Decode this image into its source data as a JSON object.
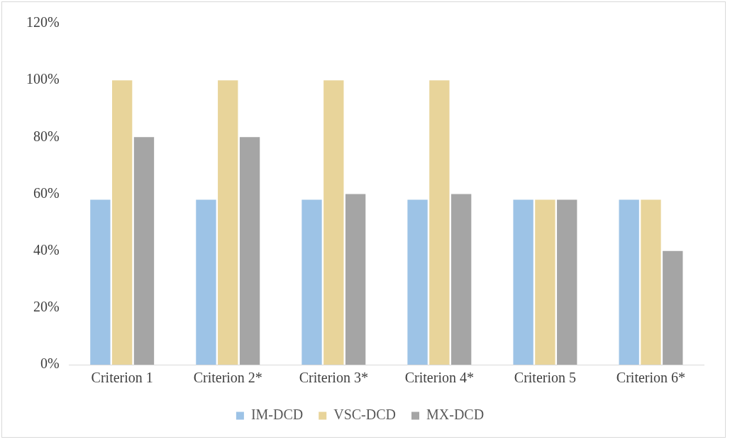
{
  "chart_data": {
    "type": "bar",
    "categories": [
      "Criterion 1",
      "Criterion 2*",
      "Criterion 3*",
      "Criterion 4*",
      "Criterion 5",
      "Criterion 6*"
    ],
    "series": [
      {
        "name": "IM-DCD",
        "color": "#9dc3e6",
        "values": [
          58,
          58,
          58,
          58,
          58,
          58
        ]
      },
      {
        "name": "VSC-DCD",
        "color": "#e8d49a",
        "values": [
          100,
          100,
          100,
          100,
          58,
          58
        ]
      },
      {
        "name": "MX-DCD",
        "color": "#a5a5a5",
        "values": [
          80,
          80,
          60,
          60,
          58,
          40
        ]
      }
    ],
    "ylim": [
      0,
      120
    ],
    "yticks": [
      {
        "value": 0,
        "label": "0%"
      },
      {
        "value": 20,
        "label": "20%"
      },
      {
        "value": 40,
        "label": "40%"
      },
      {
        "value": 60,
        "label": "60%"
      },
      {
        "value": 80,
        "label": "80%"
      },
      {
        "value": 100,
        "label": "100%"
      },
      {
        "value": 120,
        "label": "120%"
      }
    ],
    "grid": false,
    "legend": "bottom"
  }
}
